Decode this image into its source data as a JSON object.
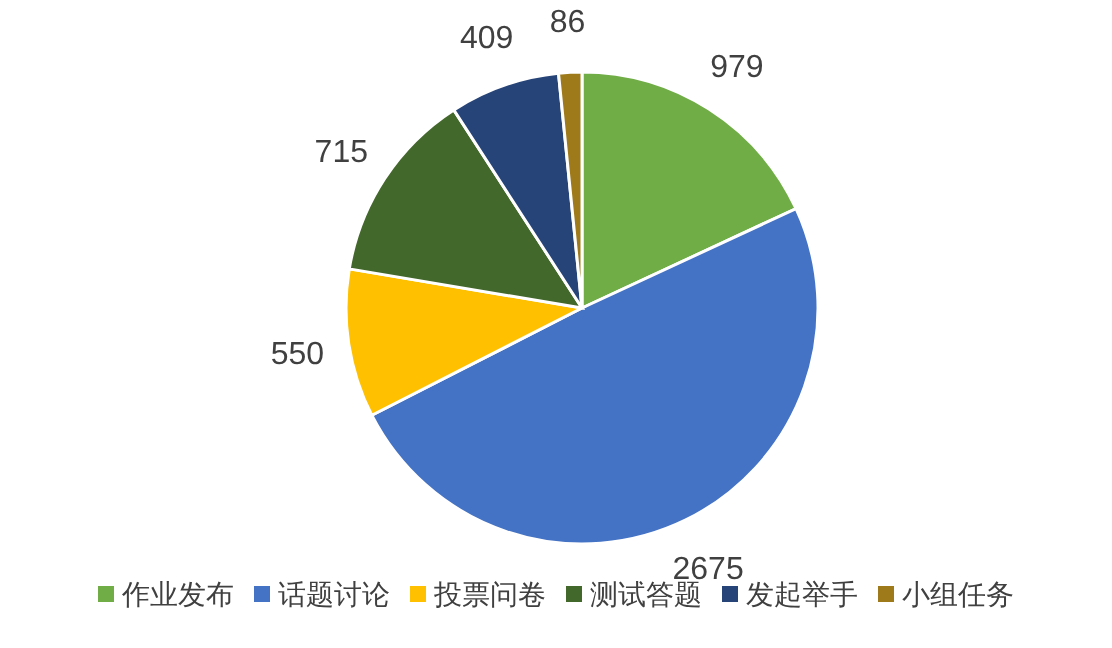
{
  "chart_data": {
    "type": "pie",
    "categories": [
      "作业发布",
      "话题讨论",
      "投票问卷",
      "测试答题",
      "发起举手",
      "小组任务"
    ],
    "values": [
      979,
      2675,
      550,
      715,
      409,
      86
    ],
    "colors": [
      "#70ad47",
      "#4472c4",
      "#ffc000",
      "#43682b",
      "#264478",
      "#9e7a1a"
    ],
    "data_labels": true,
    "legend": "bottom"
  }
}
